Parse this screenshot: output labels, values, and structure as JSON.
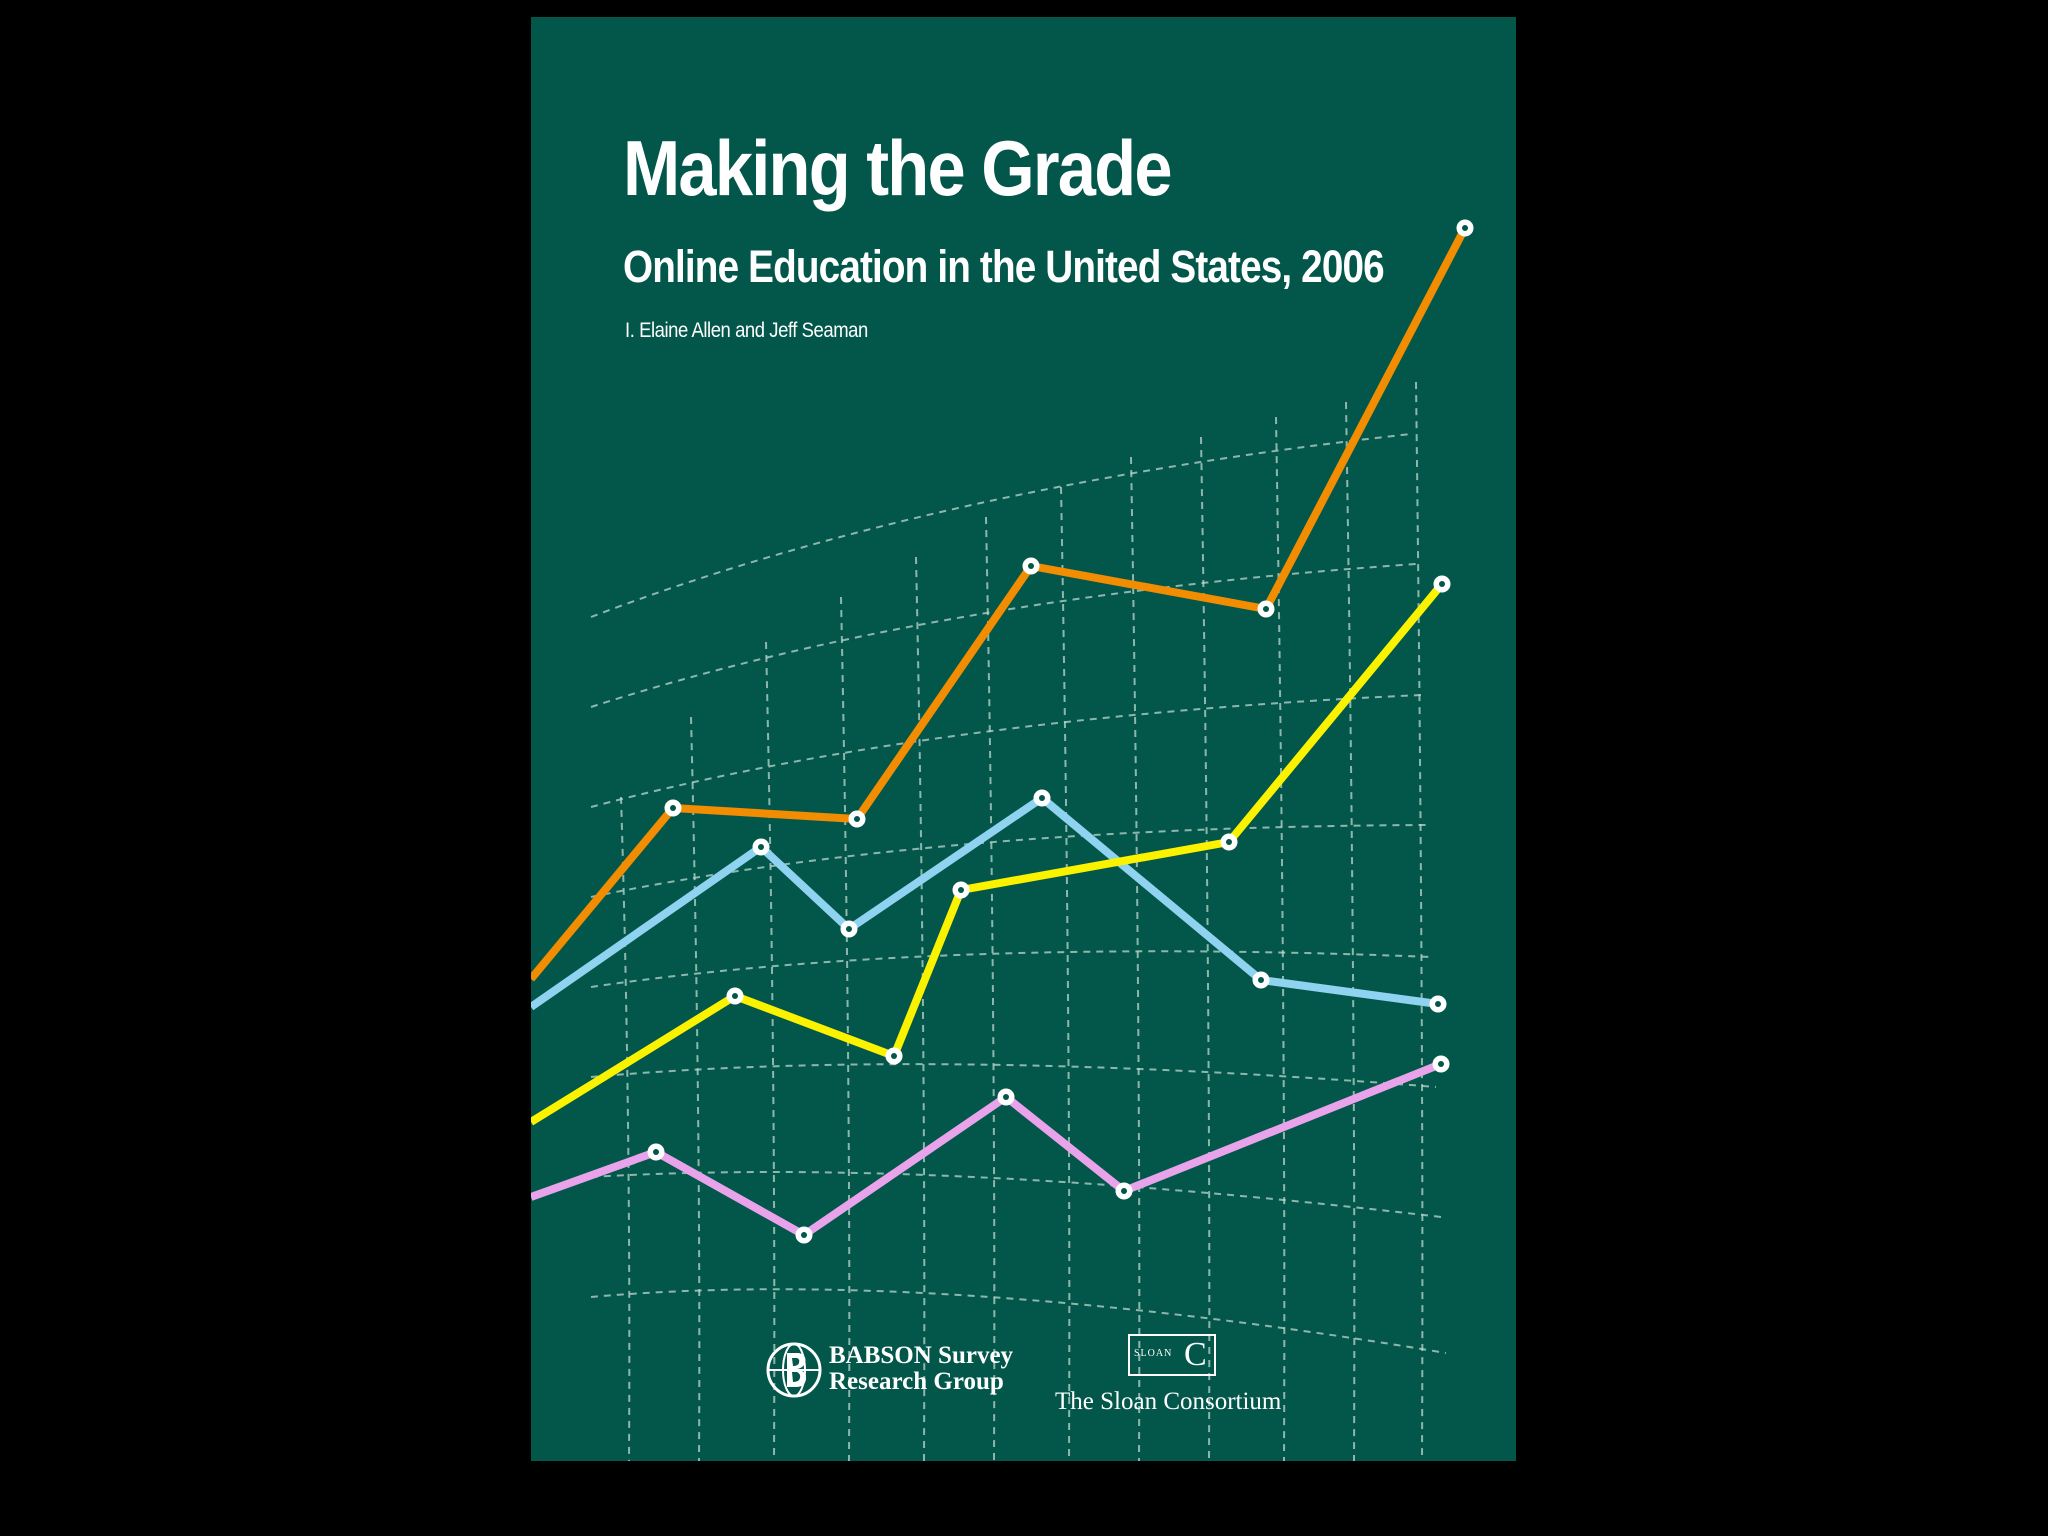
{
  "cover": {
    "title": "Making the Grade",
    "subtitle": "Online Education in the United States, 2006",
    "authors": "I. Elaine Allen and Jeff Seaman",
    "background_color": "#02574a"
  },
  "logos": {
    "babson": {
      "line1": "BABSON Survey",
      "line2": "Research Group",
      "icon": "babson-globe-icon"
    },
    "sloan": {
      "box_label": "SLOAN",
      "box_letter": "C",
      "name": "The Sloan Consortium"
    }
  },
  "decoration": {
    "line_colors": [
      "#f28c00",
      "#fbf200",
      "#8fd3f1",
      "#e9a3ea"
    ],
    "grid_color": "#bfd6cf"
  }
}
